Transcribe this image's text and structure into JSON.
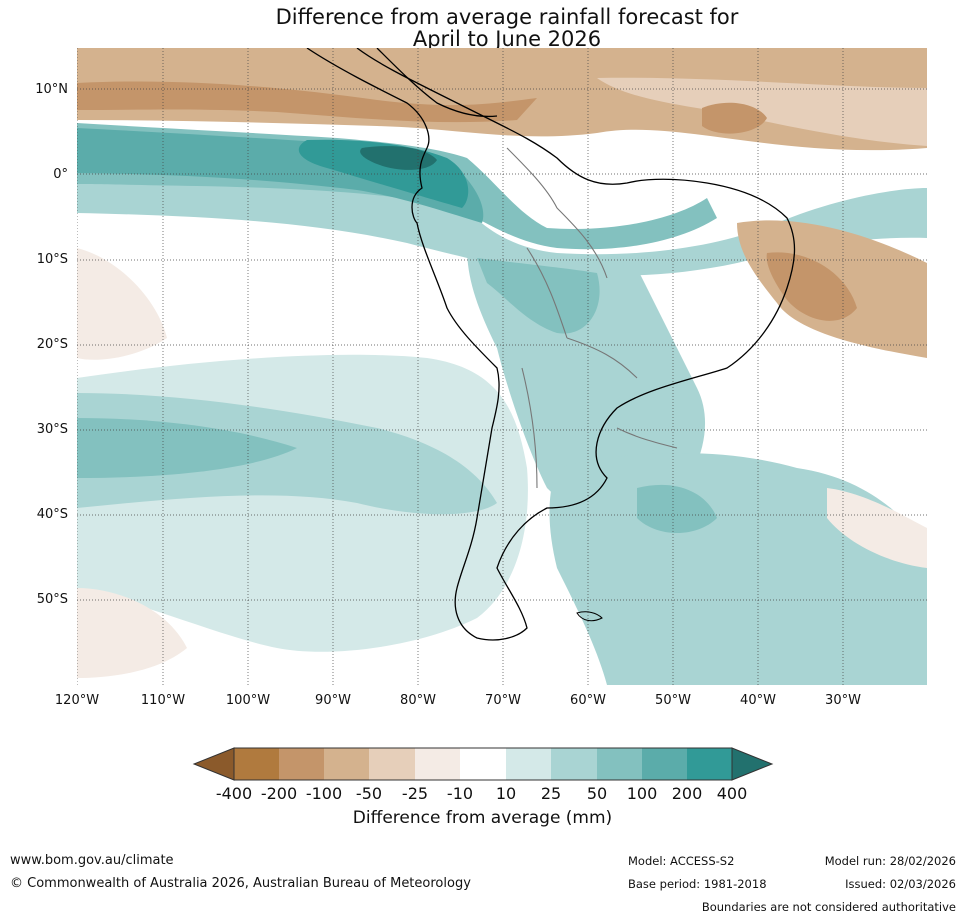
{
  "title": {
    "line1": "Difference from average rainfall forecast for",
    "line2": "April to June 2026"
  },
  "map": {
    "lat_labels": [
      "10°N",
      "0°",
      "10°S",
      "20°S",
      "30°S",
      "40°S",
      "50°S"
    ],
    "lon_labels": [
      "120°W",
      "110°W",
      "100°W",
      "90°W",
      "80°W",
      "70°W",
      "60°W",
      "50°W",
      "40°W",
      "30°W"
    ]
  },
  "colorbar": {
    "ticks": [
      "-400",
      "-200",
      "-100",
      "-50",
      "-25",
      "-10",
      "10",
      "25",
      "50",
      "100",
      "200",
      "400"
    ],
    "colors": {
      "under": "#8b5a2b",
      "c1": "#b07a3e",
      "c2": "#c4956a",
      "c3": "#d4b28e",
      "c4": "#e6cfba",
      "c5": "#f4ebe5",
      "c6": "#ffffff",
      "c7": "#d4e9e8",
      "c8": "#a9d4d3",
      "c9": "#83c1bf",
      "c10": "#5bacaa",
      "c11": "#319a97",
      "over": "#22716e"
    },
    "label": "Difference from average (mm)"
  },
  "footer": {
    "url": "www.bom.gov.au/climate",
    "copyright": "© Commonwealth of Australia 2026, Australian Bureau of Meteorology",
    "model": "Model: ACCESS-S2",
    "base_period": "Base period: 1981-2018",
    "model_run": "Model run: 28/02/2026",
    "issued": "Issued: 02/03/2026",
    "disclaimer": "Boundaries are not considered authoritative"
  }
}
